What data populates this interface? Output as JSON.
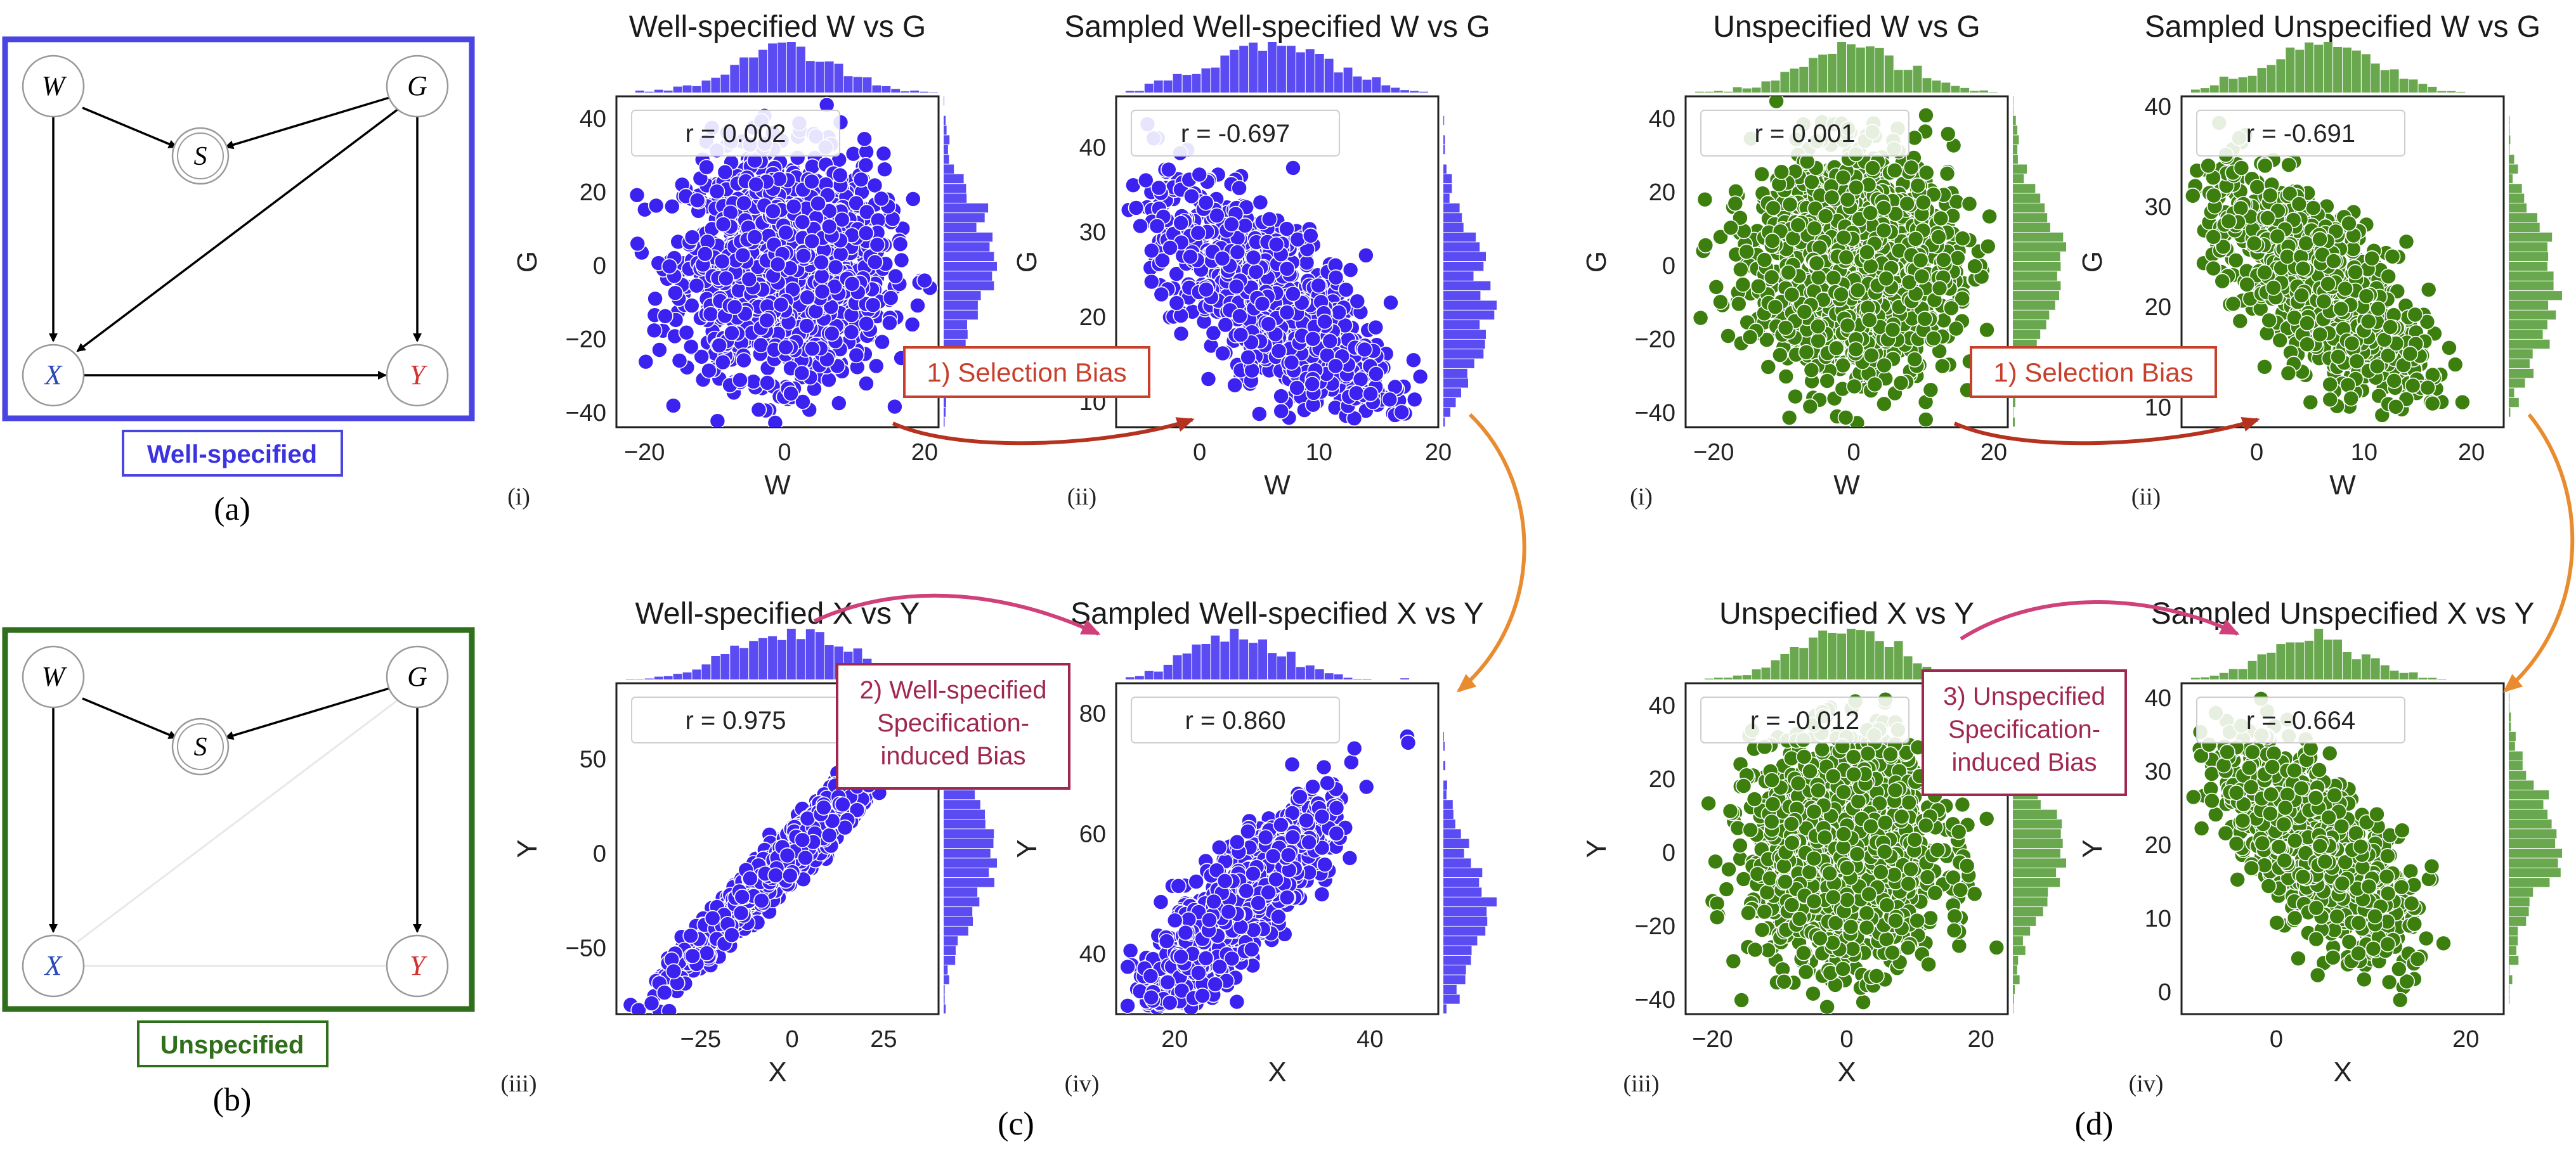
{
  "colors": {
    "well": "#3b22f0",
    "well_hist": "#5a4cf2",
    "unspec": "#3c7f0f",
    "unspec_hist": "#6aa84f",
    "frame_well": "#4a45e2",
    "frame_unspec": "#2f6e1a",
    "x_node": "#2a48b8",
    "y_node": "#d23232",
    "sel_bias": "#c8402c",
    "spec_bias": "#a0284f",
    "arrow_orange": "#e98b2f",
    "arrow_pink": "#d0407a"
  },
  "dag_a": {
    "nodes": [
      "W",
      "G",
      "S",
      "X",
      "Y"
    ],
    "label": "Well-specified",
    "caption": "(a)"
  },
  "dag_b": {
    "nodes": [
      "W",
      "G",
      "S",
      "X",
      "Y"
    ],
    "label": "Unspecified",
    "caption": "(b)"
  },
  "captions": {
    "c": "(c)",
    "d": "(d)"
  },
  "annotations": {
    "selection_bias": "1) Selection Bias",
    "well_bias": [
      "2) Well-specified",
      "Specification-",
      "induced Bias"
    ],
    "unspec_bias": [
      "3) Unspecified",
      "Specification-",
      "induced Bias"
    ]
  },
  "chart_data": [
    {
      "id": "c-i",
      "type": "scatter",
      "group": "well",
      "sub": "(i)",
      "title": "Well-specified W vs G",
      "xlabel": "W",
      "ylabel": "G",
      "xlim": [
        -24,
        22
      ],
      "ylim": [
        -44,
        46
      ],
      "xticks": [
        -20,
        0,
        20
      ],
      "yticks": [
        -40,
        -20,
        0,
        20,
        40
      ],
      "r_label": "r = 0.002",
      "cloud": {
        "cx": 0,
        "cy": 0,
        "sx": 7,
        "sy": 15,
        "rho": 0.0
      }
    },
    {
      "id": "c-ii",
      "type": "scatter",
      "group": "well",
      "sub": "(ii)",
      "title": "Sampled Well-specified W vs G",
      "xlabel": "W",
      "ylabel": "G",
      "xlim": [
        -7,
        20
      ],
      "ylim": [
        7,
        46
      ],
      "xticks": [
        0,
        10,
        20
      ],
      "yticks": [
        10,
        20,
        30,
        40
      ],
      "r_label": "r = -0.697",
      "cloud": {
        "cx": 6,
        "cy": 22,
        "sx": 5,
        "sy": 7,
        "rho": -0.72
      }
    },
    {
      "id": "c-iii",
      "type": "scatter",
      "group": "well",
      "sub": "(iii)",
      "title": "Well-specified X vs Y",
      "xlabel": "X",
      "ylabel": "Y",
      "xlim": [
        -48,
        40
      ],
      "ylim": [
        -85,
        90
      ],
      "xticks": [
        -25,
        0,
        25
      ],
      "yticks": [
        -50,
        0,
        50
      ],
      "r_label": "r = 0.975",
      "cloud": {
        "cx": 0,
        "cy": 0,
        "sx": 15,
        "sy": 30,
        "rho": 0.975
      }
    },
    {
      "id": "c-iv",
      "type": "scatter",
      "group": "well",
      "sub": "(iv)",
      "title": "Sampled Well-specified X vs Y",
      "xlabel": "X",
      "ylabel": "Y",
      "xlim": [
        14,
        47
      ],
      "ylim": [
        30,
        85
      ],
      "xticks": [
        20,
        40
      ],
      "yticks": [
        40,
        60,
        80
      ],
      "r_label": "r = 0.860",
      "cloud": {
        "cx": 26,
        "cy": 47,
        "sx": 5,
        "sy": 9,
        "rho": 0.86
      }
    },
    {
      "id": "d-i",
      "type": "scatter",
      "group": "unspec",
      "sub": "(i)",
      "title": "Unspecified W vs G",
      "xlabel": "W",
      "ylabel": "G",
      "xlim": [
        -24,
        22
      ],
      "ylim": [
        -44,
        46
      ],
      "xticks": [
        -20,
        0,
        20
      ],
      "yticks": [
        -40,
        -20,
        0,
        20,
        40
      ],
      "r_label": "r = 0.001",
      "cloud": {
        "cx": 0,
        "cy": 0,
        "sx": 7,
        "sy": 15,
        "rho": 0.0
      }
    },
    {
      "id": "d-ii",
      "type": "scatter",
      "group": "unspec",
      "sub": "(ii)",
      "title": "Sampled Unspecified W vs G",
      "xlabel": "W",
      "ylabel": "G",
      "xlim": [
        -7,
        23
      ],
      "ylim": [
        8,
        41
      ],
      "xticks": [
        0,
        10,
        20
      ],
      "yticks": [
        10,
        20,
        30,
        40
      ],
      "r_label": "r = -0.691",
      "cloud": {
        "cx": 6,
        "cy": 22,
        "sx": 5,
        "sy": 6,
        "rho": -0.72
      }
    },
    {
      "id": "d-iii",
      "type": "scatter",
      "group": "unspec",
      "sub": "(iii)",
      "title": "Unspecified X vs Y",
      "xlabel": "X",
      "ylabel": "Y",
      "xlim": [
        -24,
        24
      ],
      "ylim": [
        -44,
        46
      ],
      "xticks": [
        -20,
        0,
        20
      ],
      "yticks": [
        -40,
        -20,
        0,
        20,
        40
      ],
      "r_label": "r = -0.012",
      "cloud": {
        "cx": 0,
        "cy": 0,
        "sx": 7,
        "sy": 15,
        "rho": 0.0
      }
    },
    {
      "id": "d-iv",
      "type": "scatter",
      "group": "unspec",
      "sub": "(iv)",
      "title": "Sampled Unspecified X vs Y",
      "xlabel": "X",
      "ylabel": "Y",
      "xlim": [
        -10,
        24
      ],
      "ylim": [
        -3,
        42
      ],
      "xticks": [
        0,
        20
      ],
      "yticks": [
        0,
        10,
        20,
        30,
        40
      ],
      "r_label": "r = -0.664",
      "cloud": {
        "cx": 4,
        "cy": 20,
        "sx": 5,
        "sy": 7,
        "rho": -0.68
      }
    }
  ]
}
